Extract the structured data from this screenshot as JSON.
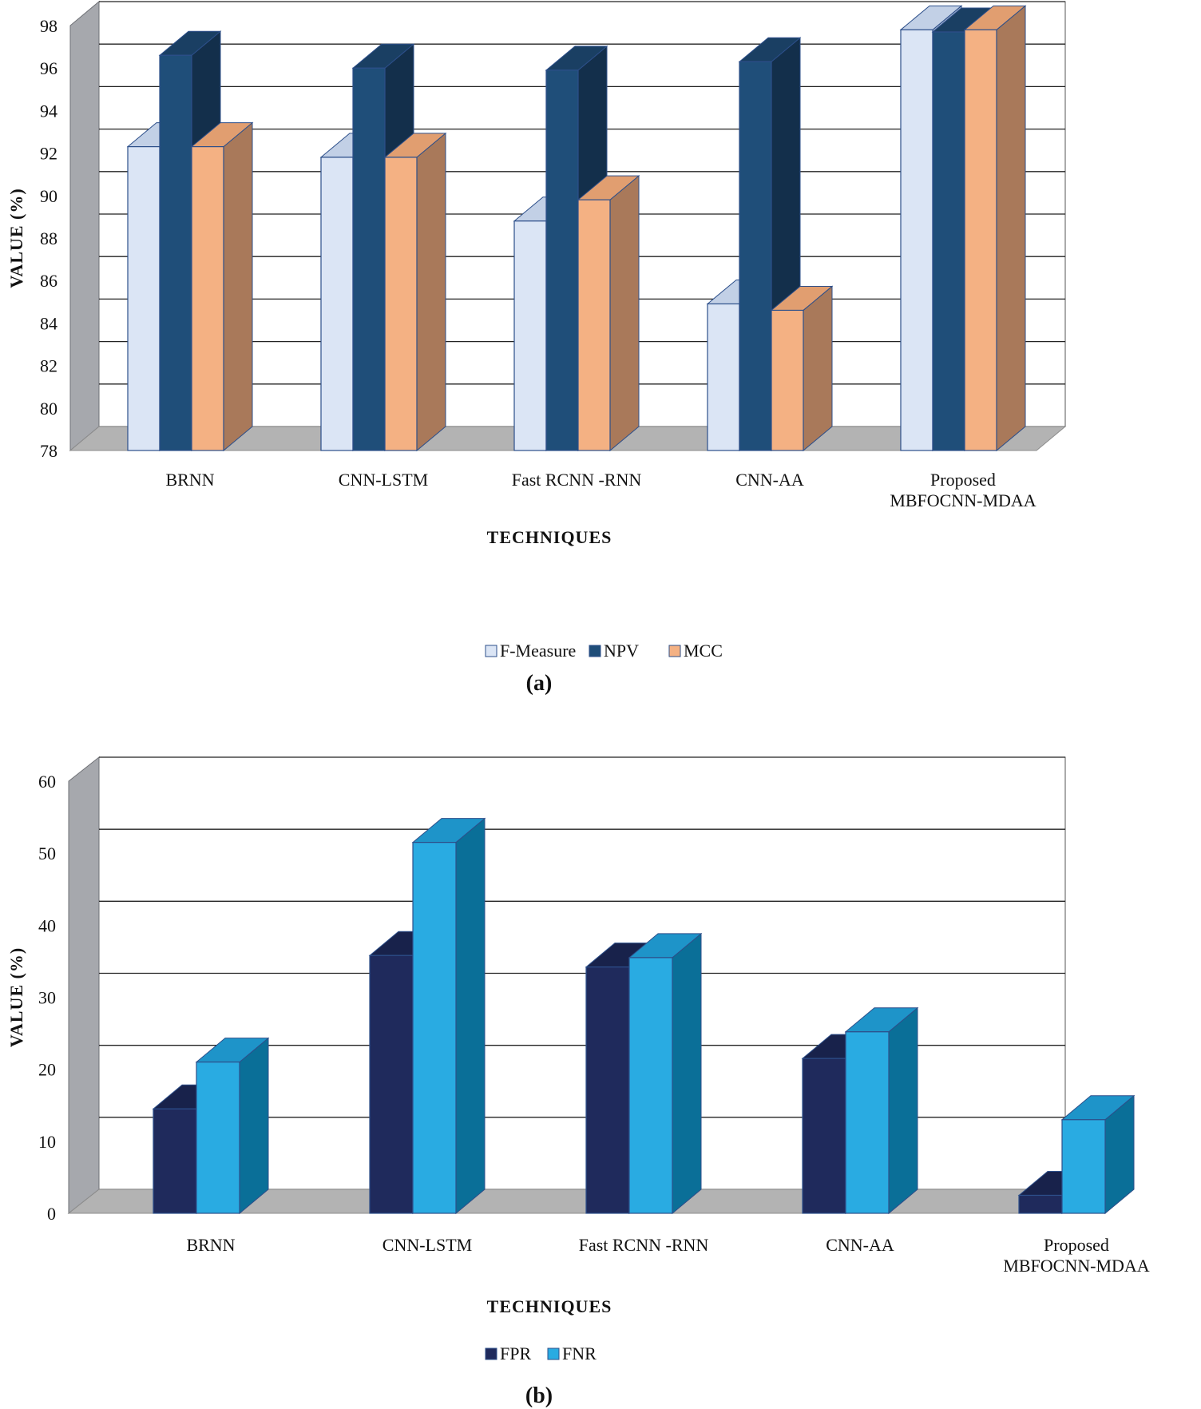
{
  "chart_data": [
    {
      "type": "bar",
      "panel_label": "(a)",
      "xlabel": "TECHNIQUES",
      "ylabel": "VALUE (%)",
      "ylim": [
        78,
        98
      ],
      "yticks": [
        78,
        80,
        82,
        84,
        86,
        88,
        90,
        92,
        94,
        96,
        98
      ],
      "categories": [
        [
          "BRNN"
        ],
        [
          "CNN-LSTM"
        ],
        [
          "Fast RCNN -RNN"
        ],
        [
          "CNN-AA"
        ],
        [
          "Proposed",
          "MBFOCNN-MDAA"
        ]
      ],
      "series": [
        {
          "name": "F-Measure",
          "values": [
            92.3,
            91.8,
            88.8,
            84.9,
            97.8
          ]
        },
        {
          "name": "NPV",
          "values": [
            96.6,
            96.0,
            95.9,
            96.3,
            97.7
          ]
        },
        {
          "name": "MCC",
          "values": [
            92.3,
            91.8,
            89.8,
            84.6,
            97.8
          ]
        }
      ],
      "colors": {
        "F-Measure": {
          "front": "#dbe5f5",
          "top": "#c2d0e6",
          "side": "#a9b9d4"
        },
        "NPV": {
          "front": "#1f4e79",
          "top": "#1a3f63",
          "side": "#132f4b"
        },
        "MCC": {
          "front": "#f4b183",
          "top": "#e19e70",
          "side": "#a9795a"
        }
      },
      "legend": "bottom"
    },
    {
      "type": "bar",
      "panel_label": "(b)",
      "xlabel": "TECHNIQUES",
      "ylabel": "VALUE (%)",
      "ylim": [
        0,
        60
      ],
      "yticks": [
        0,
        10,
        20,
        30,
        40,
        50,
        60
      ],
      "categories": [
        [
          "BRNN"
        ],
        [
          "CNN-LSTM"
        ],
        [
          "Fast RCNN -RNN"
        ],
        [
          "CNN-AA"
        ],
        [
          "Proposed",
          "MBFOCNN-MDAA"
        ]
      ],
      "series": [
        {
          "name": "FPR",
          "values": [
            14.5,
            35.8,
            34.2,
            21.5,
            2.5
          ]
        },
        {
          "name": "FNR",
          "values": [
            21.0,
            51.5,
            35.5,
            25.2,
            13.0
          ]
        }
      ],
      "colors": {
        "FPR": {
          "front": "#1f2a5c",
          "top": "#18224b",
          "side": "#111938"
        },
        "FNR": {
          "front": "#29abe2",
          "top": "#1e94c9",
          "side": "#0a6f98"
        }
      },
      "legend": "bottom"
    }
  ]
}
